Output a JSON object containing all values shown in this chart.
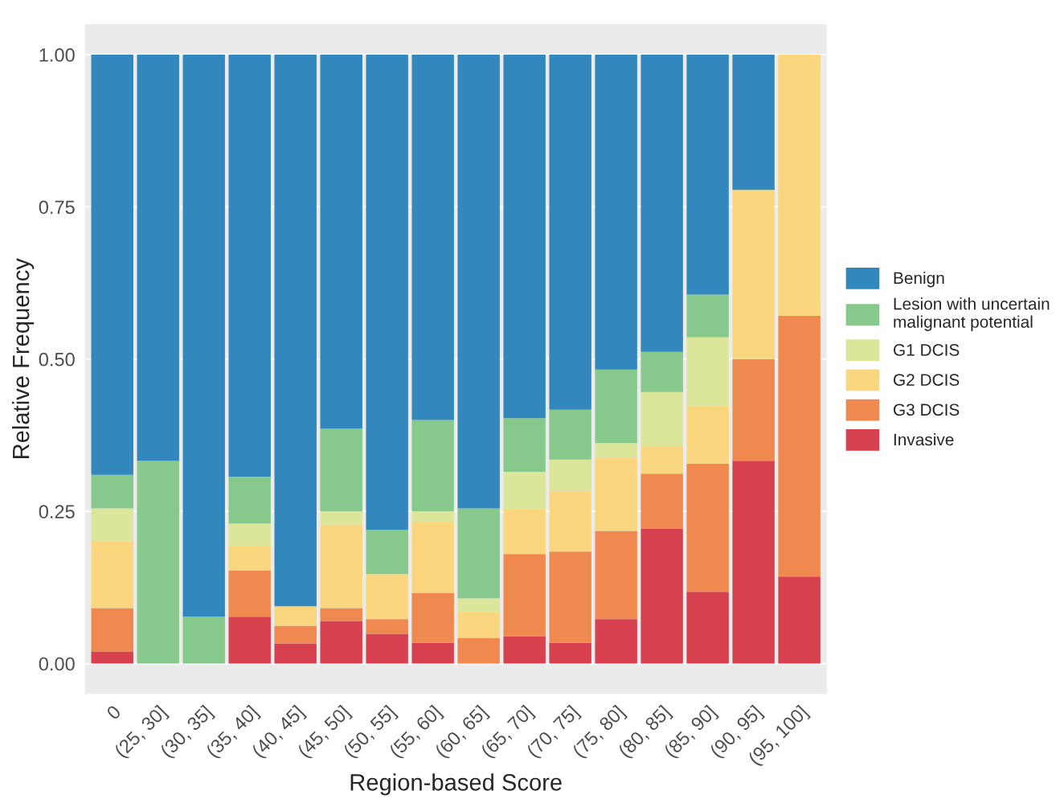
{
  "chart_data": {
    "type": "bar",
    "stacked": true,
    "xlabel": "Region-based Score",
    "ylabel": "Relative Frequency",
    "categories": [
      "0",
      "(25, 30]",
      "(30, 35]",
      "(35, 40]",
      "(40, 45]",
      "(45, 50]",
      "(50, 55]",
      "(55, 60]",
      "(60, 65]",
      "(65, 70]",
      "(70, 75]",
      "(75, 80]",
      "(80, 85]",
      "(85, 90]",
      "(90, 95]",
      "(95, 100]"
    ],
    "series": [
      {
        "name": "Invasive",
        "color": "#d7404f",
        "values": [
          0.02,
          0,
          0,
          0.077,
          0.033,
          0.07,
          0.049,
          0.034,
          0,
          0.045,
          0.034,
          0.073,
          0.222,
          0.118,
          0.333,
          0.143
        ]
      },
      {
        "name": "G3 DCIS",
        "color": "#f0894f",
        "values": [
          0.071,
          0,
          0,
          0.076,
          0.029,
          0.021,
          0.024,
          0.082,
          0.042,
          0.135,
          0.15,
          0.145,
          0.09,
          0.21,
          0.167,
          0.428
        ]
      },
      {
        "name": "G2 DCIS",
        "color": "#fad77e",
        "values": [
          0.11,
          0,
          0,
          0.04,
          0.032,
          0.137,
          0.074,
          0.117,
          0.043,
          0.074,
          0.1,
          0.121,
          0.045,
          0.094,
          0.278,
          0.429
        ]
      },
      {
        "name": "G1 DCIS",
        "color": "#dbe69a",
        "values": [
          0.054,
          0,
          0,
          0.037,
          0,
          0.022,
          0,
          0.017,
          0.022,
          0.061,
          0.051,
          0.023,
          0.089,
          0.114,
          0,
          0
        ]
      },
      {
        "name": "Lesion with uncertain\nmalignant potential",
        "color": "#87c98c",
        "values": [
          0.055,
          0.333,
          0.077,
          0.077,
          0,
          0.136,
          0.073,
          0.15,
          0.148,
          0.088,
          0.082,
          0.121,
          0.066,
          0.07,
          0,
          0
        ]
      },
      {
        "name": "Benign",
        "color": "#3288bd",
        "values": [
          0.69,
          0.667,
          0.923,
          0.693,
          0.906,
          0.614,
          0.78,
          0.6,
          0.745,
          0.597,
          0.583,
          0.517,
          0.488,
          0.394,
          0.222,
          0
        ]
      }
    ],
    "ylim": [
      -0.05,
      1.05
    ],
    "yticks": [
      {
        "value": 0,
        "label": "0.00"
      },
      {
        "value": 0.25,
        "label": "0.25"
      },
      {
        "value": 0.5,
        "label": "0.50"
      },
      {
        "value": 0.75,
        "label": "0.75"
      },
      {
        "value": 1,
        "label": "1.00"
      }
    ],
    "grid": "y",
    "legend": "right"
  }
}
